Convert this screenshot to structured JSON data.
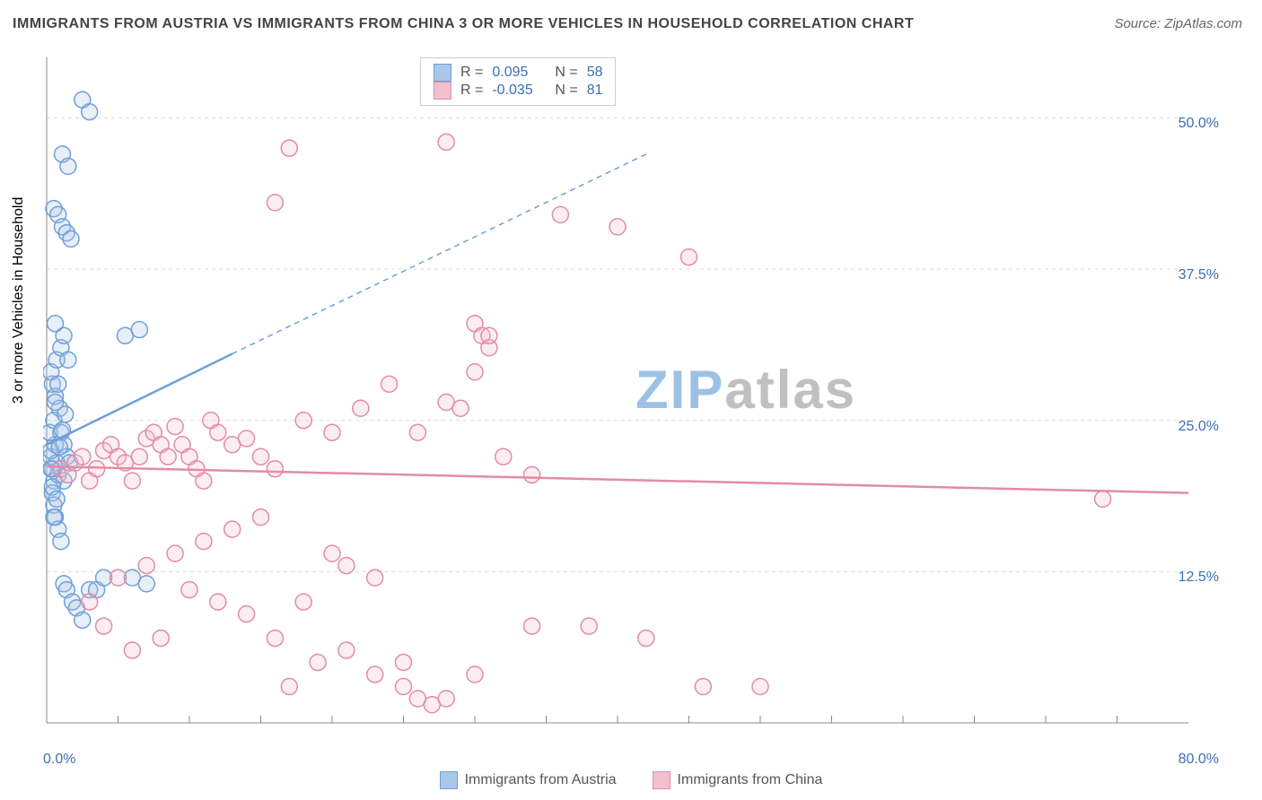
{
  "title": "IMMIGRANTS FROM AUSTRIA VS IMMIGRANTS FROM CHINA 3 OR MORE VEHICLES IN HOUSEHOLD CORRELATION CHART",
  "source": "Source: ZipAtlas.com",
  "y_axis_label": "3 or more Vehicles in Household",
  "watermark": {
    "zip": "ZIP",
    "atlas": "atlas",
    "zip_color": "#9cc1e4",
    "atlas_color": "#c0c0c0",
    "fontsize": 60
  },
  "chart": {
    "type": "scatter",
    "background_color": "#ffffff",
    "grid_color": "#dddddd",
    "grid_dash": "4,4",
    "axis_color": "#888888",
    "tick_color": "#888888",
    "xlim": [
      0,
      80
    ],
    "ylim": [
      0,
      55
    ],
    "y_ticks": [
      12.5,
      25.0,
      37.5,
      50.0
    ],
    "y_tick_labels": [
      "12.5%",
      "25.0%",
      "37.5%",
      "50.0%"
    ],
    "y_tick_color": "#3b6fb6",
    "x_min_label": "0.0%",
    "x_max_label": "80.0%",
    "x_label_color": "#3b6fb6",
    "x_ticks_minor": [
      5,
      10,
      15,
      20,
      25,
      30,
      35,
      40,
      45,
      50,
      55,
      60,
      65,
      70,
      75
    ],
    "marker_radius": 9,
    "marker_stroke_width": 1.5,
    "marker_fill_opacity": 0.28,
    "series": [
      {
        "name": "Immigrants from Austria",
        "color": "#6f9fd8",
        "fill": "#a9c7e8",
        "R": "0.095",
        "N": "58",
        "trend": {
          "x1": 0,
          "y1": 23,
          "x2_solid": 13,
          "y2_solid": 30.5,
          "x2": 42,
          "y2": 47,
          "width": 2.5
        },
        "points": [
          [
            0.4,
            21
          ],
          [
            0.5,
            20
          ],
          [
            0.3,
            22
          ],
          [
            0.6,
            23
          ],
          [
            0.2,
            24
          ],
          [
            0.7,
            21.5
          ],
          [
            0.8,
            20.5
          ],
          [
            0.4,
            19
          ],
          [
            0.3,
            22.5
          ],
          [
            0.5,
            25
          ],
          [
            0.9,
            26
          ],
          [
            0.6,
            27
          ],
          [
            0.4,
            28
          ],
          [
            0.3,
            29
          ],
          [
            0.7,
            30
          ],
          [
            1.0,
            24
          ],
          [
            1.2,
            23
          ],
          [
            1.4,
            22
          ],
          [
            1.6,
            21.5
          ],
          [
            1.3,
            25.5
          ],
          [
            1.2,
            20
          ],
          [
            0.5,
            18
          ],
          [
            0.6,
            17
          ],
          [
            0.8,
            16
          ],
          [
            1.0,
            15
          ],
          [
            1.2,
            11.5
          ],
          [
            1.4,
            11
          ],
          [
            1.8,
            10
          ],
          [
            2.1,
            9.5
          ],
          [
            2.5,
            8.5
          ],
          [
            3.0,
            11
          ],
          [
            3.5,
            11
          ],
          [
            4.0,
            12
          ],
          [
            6.0,
            12
          ],
          [
            7.0,
            11.5
          ],
          [
            1.0,
            31
          ],
          [
            1.2,
            32
          ],
          [
            1.5,
            30
          ],
          [
            1.1,
            47
          ],
          [
            1.5,
            46
          ],
          [
            0.5,
            42.5
          ],
          [
            0.8,
            42
          ],
          [
            1.1,
            41
          ],
          [
            1.4,
            40.5
          ],
          [
            1.7,
            40
          ],
          [
            5.5,
            32
          ],
          [
            6.5,
            32.5
          ],
          [
            2.5,
            51.5
          ],
          [
            3.0,
            50.5
          ],
          [
            0.6,
            33
          ],
          [
            0.4,
            19.5
          ],
          [
            0.3,
            21.0
          ],
          [
            0.7,
            18.5
          ],
          [
            0.5,
            17.0
          ],
          [
            0.9,
            22.8
          ],
          [
            1.1,
            24.2
          ],
          [
            0.6,
            26.5
          ],
          [
            0.8,
            28.0
          ]
        ]
      },
      {
        "name": "Immigrants from China",
        "color": "#e28ca4",
        "fill": "#f3c0cf",
        "R": "-0.035",
        "N": "81",
        "trend": {
          "x1": 0,
          "y1": 21.2,
          "x2_solid": 80,
          "y2_solid": 19.0,
          "x2": 80,
          "y2": 19.0,
          "width": 2.5
        },
        "points": [
          [
            1,
            21
          ],
          [
            1.5,
            20.5
          ],
          [
            2,
            21.5
          ],
          [
            2.5,
            22
          ],
          [
            3,
            20
          ],
          [
            3.5,
            21
          ],
          [
            4,
            22.5
          ],
          [
            4.5,
            23
          ],
          [
            5,
            22
          ],
          [
            5.5,
            21.5
          ],
          [
            6,
            20
          ],
          [
            6.5,
            22
          ],
          [
            7,
            23.5
          ],
          [
            7.5,
            24
          ],
          [
            8,
            23
          ],
          [
            8.5,
            22
          ],
          [
            9,
            24.5
          ],
          [
            9.5,
            23
          ],
          [
            10,
            22
          ],
          [
            10.5,
            21
          ],
          [
            11,
            20
          ],
          [
            11.5,
            25
          ],
          [
            12,
            24
          ],
          [
            13,
            23
          ],
          [
            14,
            23.5
          ],
          [
            15,
            22
          ],
          [
            16,
            21
          ],
          [
            18,
            25
          ],
          [
            20,
            24
          ],
          [
            22,
            26
          ],
          [
            24,
            28
          ],
          [
            26,
            24
          ],
          [
            28,
            26.5
          ],
          [
            30,
            33
          ],
          [
            30.5,
            32
          ],
          [
            31,
            31
          ],
          [
            31,
            32
          ],
          [
            30,
            29
          ],
          [
            34,
            20.5
          ],
          [
            36,
            42
          ],
          [
            40,
            41
          ],
          [
            45,
            38.5
          ],
          [
            17,
            47.5
          ],
          [
            16,
            43
          ],
          [
            28,
            48
          ],
          [
            74,
            18.5
          ],
          [
            46,
            3
          ],
          [
            42,
            7
          ],
          [
            38,
            8
          ],
          [
            34,
            8
          ],
          [
            30,
            4
          ],
          [
            28,
            2
          ],
          [
            27,
            1.5
          ],
          [
            26,
            2
          ],
          [
            25,
            5
          ],
          [
            23,
            12
          ],
          [
            21,
            13
          ],
          [
            20,
            14
          ],
          [
            18,
            10
          ],
          [
            16,
            7
          ],
          [
            14,
            9
          ],
          [
            12,
            10
          ],
          [
            10,
            11
          ],
          [
            8,
            7
          ],
          [
            6,
            6
          ],
          [
            4,
            8
          ],
          [
            3,
            10
          ],
          [
            5,
            12
          ],
          [
            7,
            13
          ],
          [
            9,
            14
          ],
          [
            11,
            15
          ],
          [
            13,
            16
          ],
          [
            15,
            17
          ],
          [
            17,
            3
          ],
          [
            19,
            5
          ],
          [
            21,
            6
          ],
          [
            23,
            4
          ],
          [
            25,
            3
          ],
          [
            29,
            26
          ],
          [
            32,
            22
          ],
          [
            50,
            3
          ]
        ]
      }
    ],
    "legend_labels": {
      "R": "R =",
      "N": "N ="
    }
  },
  "bottom_legend": [
    {
      "label": "Immigrants from Austria",
      "swatch_fill": "#a9c7e8",
      "swatch_border": "#6f9fd8"
    },
    {
      "label": "Immigrants from China",
      "swatch_fill": "#f3c0cf",
      "swatch_border": "#e28ca4"
    }
  ],
  "title_fontsize": 16,
  "title_color": "#444444",
  "source_fontsize": 15,
  "source_color": "#666666"
}
